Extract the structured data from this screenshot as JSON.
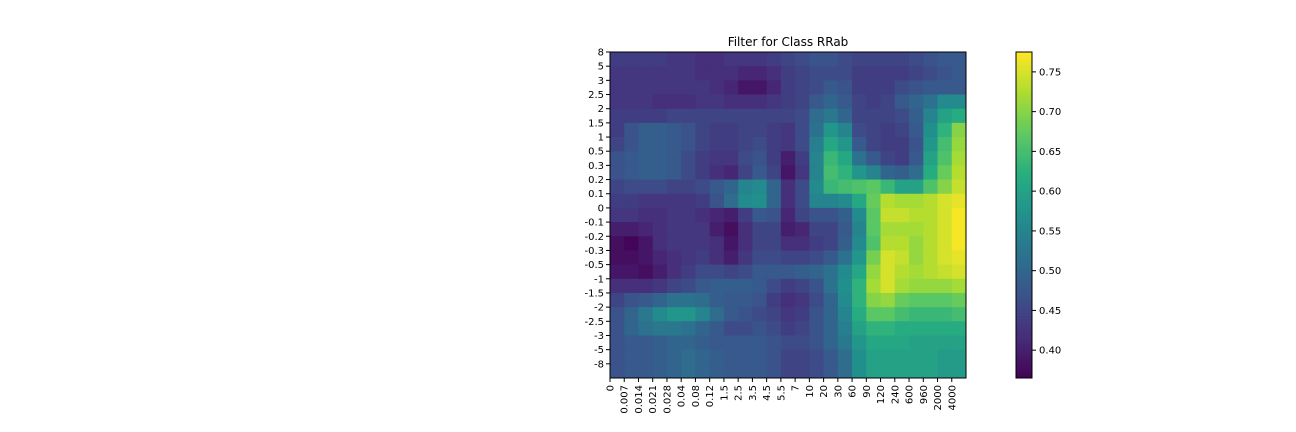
{
  "chart_data": {
    "type": "heatmap",
    "title": "Filter for Class RRab",
    "xlabel": "",
    "ylabel": "",
    "x_ticks": [
      "0",
      "0.007",
      "0.014",
      "0.021",
      "0.028",
      "0.04",
      "0.08",
      "0.12",
      "1.5",
      "2.5",
      "3.5",
      "4.5",
      "5.5",
      "7",
      "10",
      "20",
      "30",
      "60",
      "90",
      "120",
      "240",
      "600",
      "960",
      "2000",
      "4000"
    ],
    "y_ticks": [
      "8",
      "5",
      "3",
      "2.5",
      "2",
      "1.5",
      "1",
      "0.5",
      "0.3",
      "0.2",
      "0.1",
      "0",
      "-0.1",
      "-0.2",
      "-0.3",
      "-0.5",
      "-1",
      "-1.5",
      "-2",
      "-2.5",
      "-3",
      "-5",
      "-8"
    ],
    "colorbar": {
      "ticks": [
        0.4,
        0.45,
        0.5,
        0.55,
        0.6,
        0.65,
        0.7,
        0.75
      ],
      "tick_labels": [
        "0.40",
        "0.45",
        "0.50",
        "0.55",
        "0.60",
        "0.65",
        "0.70",
        "0.75"
      ],
      "range": [
        0.365,
        0.775
      ],
      "colormap": "viridis"
    },
    "grid": false,
    "values": [
      [
        0.44,
        0.44,
        0.44,
        0.44,
        0.43,
        0.43,
        0.42,
        0.42,
        0.43,
        0.43,
        0.43,
        0.44,
        0.45,
        0.46,
        0.47,
        0.47,
        0.46,
        0.45,
        0.45,
        0.45,
        0.45,
        0.46,
        0.47,
        0.48,
        0.48
      ],
      [
        0.43,
        0.43,
        0.43,
        0.43,
        0.43,
        0.43,
        0.42,
        0.42,
        0.42,
        0.41,
        0.41,
        0.42,
        0.44,
        0.45,
        0.46,
        0.46,
        0.46,
        0.44,
        0.44,
        0.44,
        0.44,
        0.45,
        0.46,
        0.47,
        0.48
      ],
      [
        0.43,
        0.43,
        0.43,
        0.43,
        0.43,
        0.43,
        0.43,
        0.42,
        0.41,
        0.39,
        0.39,
        0.41,
        0.44,
        0.45,
        0.46,
        0.48,
        0.47,
        0.44,
        0.44,
        0.44,
        0.46,
        0.47,
        0.48,
        0.48,
        0.48
      ],
      [
        0.43,
        0.43,
        0.43,
        0.42,
        0.42,
        0.42,
        0.43,
        0.43,
        0.42,
        0.42,
        0.42,
        0.43,
        0.44,
        0.45,
        0.48,
        0.5,
        0.48,
        0.45,
        0.44,
        0.45,
        0.48,
        0.5,
        0.52,
        0.56,
        0.56
      ],
      [
        0.44,
        0.44,
        0.44,
        0.44,
        0.45,
        0.45,
        0.45,
        0.45,
        0.45,
        0.45,
        0.45,
        0.45,
        0.45,
        0.46,
        0.51,
        0.53,
        0.5,
        0.45,
        0.45,
        0.45,
        0.46,
        0.49,
        0.55,
        0.6,
        0.62
      ],
      [
        0.44,
        0.47,
        0.49,
        0.49,
        0.48,
        0.47,
        0.45,
        0.44,
        0.44,
        0.45,
        0.45,
        0.44,
        0.43,
        0.46,
        0.52,
        0.58,
        0.55,
        0.46,
        0.45,
        0.44,
        0.45,
        0.48,
        0.57,
        0.63,
        0.7
      ],
      [
        0.45,
        0.47,
        0.49,
        0.49,
        0.48,
        0.47,
        0.45,
        0.44,
        0.44,
        0.45,
        0.46,
        0.44,
        0.43,
        0.46,
        0.54,
        0.61,
        0.58,
        0.48,
        0.45,
        0.44,
        0.44,
        0.47,
        0.58,
        0.65,
        0.71
      ],
      [
        0.47,
        0.48,
        0.49,
        0.49,
        0.48,
        0.46,
        0.44,
        0.43,
        0.43,
        0.46,
        0.47,
        0.44,
        0.4,
        0.44,
        0.55,
        0.64,
        0.61,
        0.52,
        0.48,
        0.45,
        0.44,
        0.48,
        0.6,
        0.66,
        0.72
      ],
      [
        0.47,
        0.48,
        0.49,
        0.49,
        0.48,
        0.46,
        0.44,
        0.42,
        0.41,
        0.45,
        0.48,
        0.45,
        0.39,
        0.43,
        0.55,
        0.65,
        0.63,
        0.58,
        0.55,
        0.5,
        0.49,
        0.51,
        0.62,
        0.68,
        0.73
      ],
      [
        0.45,
        0.46,
        0.46,
        0.46,
        0.45,
        0.45,
        0.46,
        0.48,
        0.5,
        0.55,
        0.56,
        0.5,
        0.42,
        0.46,
        0.56,
        0.64,
        0.65,
        0.66,
        0.67,
        0.64,
        0.6,
        0.6,
        0.66,
        0.7,
        0.74
      ],
      [
        0.44,
        0.44,
        0.43,
        0.43,
        0.43,
        0.43,
        0.44,
        0.47,
        0.51,
        0.56,
        0.57,
        0.5,
        0.42,
        0.46,
        0.55,
        0.55,
        0.56,
        0.61,
        0.68,
        0.73,
        0.72,
        0.72,
        0.73,
        0.75,
        0.76
      ],
      [
        0.43,
        0.43,
        0.42,
        0.42,
        0.43,
        0.43,
        0.42,
        0.41,
        0.4,
        0.44,
        0.48,
        0.47,
        0.41,
        0.45,
        0.47,
        0.47,
        0.49,
        0.56,
        0.67,
        0.74,
        0.74,
        0.73,
        0.73,
        0.75,
        0.77
      ],
      [
        0.4,
        0.4,
        0.41,
        0.42,
        0.43,
        0.43,
        0.43,
        0.4,
        0.38,
        0.42,
        0.45,
        0.45,
        0.4,
        0.41,
        0.45,
        0.45,
        0.48,
        0.55,
        0.67,
        0.72,
        0.72,
        0.72,
        0.73,
        0.75,
        0.77
      ],
      [
        0.38,
        0.37,
        0.39,
        0.42,
        0.43,
        0.43,
        0.43,
        0.42,
        0.39,
        0.42,
        0.45,
        0.45,
        0.42,
        0.42,
        0.44,
        0.45,
        0.49,
        0.56,
        0.66,
        0.73,
        0.73,
        0.71,
        0.73,
        0.75,
        0.77
      ],
      [
        0.38,
        0.38,
        0.39,
        0.41,
        0.42,
        0.43,
        0.44,
        0.42,
        0.4,
        0.43,
        0.46,
        0.46,
        0.45,
        0.45,
        0.46,
        0.48,
        0.52,
        0.58,
        0.69,
        0.75,
        0.74,
        0.71,
        0.73,
        0.75,
        0.76
      ],
      [
        0.39,
        0.39,
        0.38,
        0.4,
        0.42,
        0.44,
        0.46,
        0.46,
        0.45,
        0.46,
        0.48,
        0.48,
        0.48,
        0.49,
        0.5,
        0.52,
        0.56,
        0.61,
        0.71,
        0.75,
        0.73,
        0.72,
        0.73,
        0.74,
        0.75
      ],
      [
        0.42,
        0.42,
        0.42,
        0.43,
        0.45,
        0.46,
        0.48,
        0.49,
        0.49,
        0.49,
        0.48,
        0.46,
        0.44,
        0.45,
        0.47,
        0.52,
        0.57,
        0.63,
        0.72,
        0.75,
        0.72,
        0.71,
        0.71,
        0.71,
        0.72
      ],
      [
        0.45,
        0.47,
        0.48,
        0.5,
        0.52,
        0.52,
        0.51,
        0.49,
        0.48,
        0.48,
        0.47,
        0.44,
        0.42,
        0.43,
        0.46,
        0.5,
        0.56,
        0.63,
        0.7,
        0.71,
        0.68,
        0.67,
        0.67,
        0.67,
        0.68
      ],
      [
        0.47,
        0.5,
        0.53,
        0.56,
        0.58,
        0.58,
        0.55,
        0.51,
        0.48,
        0.47,
        0.46,
        0.45,
        0.43,
        0.44,
        0.47,
        0.5,
        0.55,
        0.62,
        0.67,
        0.67,
        0.65,
        0.64,
        0.64,
        0.64,
        0.65
      ],
      [
        0.47,
        0.5,
        0.52,
        0.53,
        0.53,
        0.52,
        0.5,
        0.48,
        0.46,
        0.46,
        0.47,
        0.46,
        0.44,
        0.45,
        0.47,
        0.5,
        0.54,
        0.6,
        0.63,
        0.63,
        0.62,
        0.62,
        0.62,
        0.62,
        0.62
      ],
      [
        0.47,
        0.48,
        0.48,
        0.49,
        0.5,
        0.5,
        0.49,
        0.48,
        0.48,
        0.48,
        0.48,
        0.47,
        0.46,
        0.46,
        0.47,
        0.5,
        0.53,
        0.58,
        0.61,
        0.61,
        0.61,
        0.6,
        0.6,
        0.6,
        0.6
      ],
      [
        0.47,
        0.48,
        0.48,
        0.49,
        0.5,
        0.51,
        0.5,
        0.49,
        0.48,
        0.48,
        0.48,
        0.47,
        0.45,
        0.45,
        0.46,
        0.48,
        0.51,
        0.57,
        0.6,
        0.6,
        0.6,
        0.6,
        0.6,
        0.59,
        0.59
      ],
      [
        0.47,
        0.48,
        0.48,
        0.49,
        0.5,
        0.51,
        0.5,
        0.49,
        0.48,
        0.48,
        0.48,
        0.47,
        0.45,
        0.45,
        0.46,
        0.48,
        0.51,
        0.57,
        0.6,
        0.6,
        0.6,
        0.6,
        0.6,
        0.59,
        0.59
      ]
    ]
  }
}
